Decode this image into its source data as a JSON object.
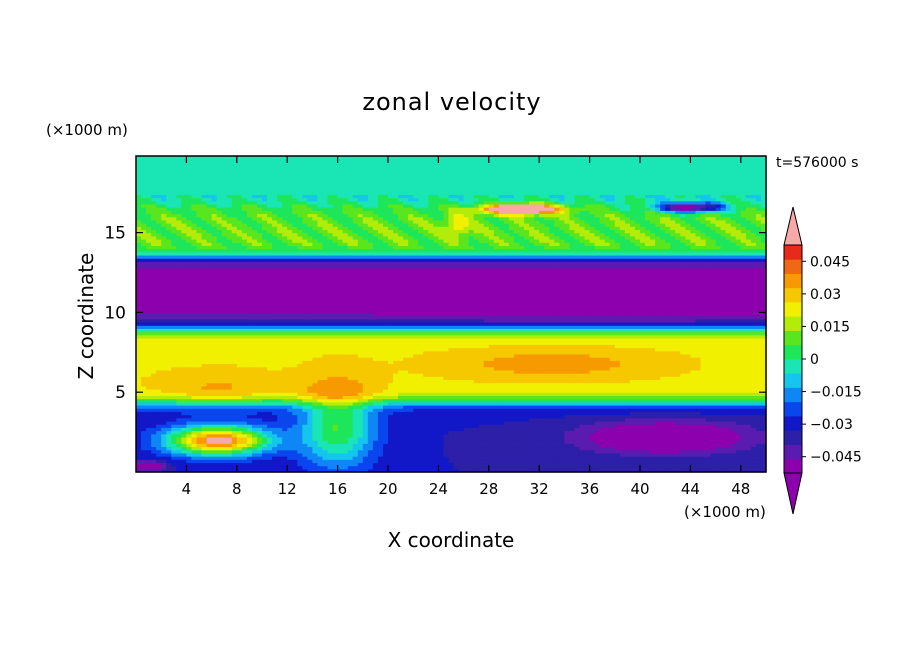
{
  "chart_data": {
    "type": "heatmap",
    "title": "zonal velocity",
    "xlabel": "X coordinate",
    "ylabel": "Z coordinate",
    "x_unit": "(×1000 m)",
    "z_unit": "(×1000 m)",
    "time_label": "t=576000 s",
    "xlim": [
      0,
      50
    ],
    "ylim": [
      0,
      19.8
    ],
    "x_ticks": [
      4,
      8,
      12,
      16,
      20,
      24,
      28,
      32,
      36,
      40,
      44,
      48
    ],
    "y_ticks": [
      5,
      10,
      15
    ],
    "colorbar": {
      "range": [
        -0.0525,
        0.0525
      ],
      "step": 0.0075,
      "extend": "both",
      "tick_values": [
        -0.045,
        -0.03,
        -0.015,
        0,
        0.015,
        0.03,
        0.045
      ],
      "tick_labels": [
        "−0.045",
        "−0.03",
        "−0.015",
        "0",
        "0.015",
        "0.03",
        "0.045"
      ],
      "colors": [
        "#8c00ad",
        "#5a1cb0",
        "#2c1fa8",
        "#1218c8",
        "#0a46ee",
        "#0f86f5",
        "#14c6ee",
        "#19e6b4",
        "#1ee65a",
        "#5ae61e",
        "#b4ec0a",
        "#f0f000",
        "#f6c800",
        "#f69a00",
        "#ef6814",
        "#e82a1a"
      ],
      "over_color": "#f7a8a8",
      "under_color": "#8c00ad"
    },
    "fields": {
      "bands": [
        {
          "z_center": 18.6,
          "z_width": 1.6,
          "value": 0.001
        },
        {
          "z_center": 15.4,
          "z_width": 1.2,
          "value": 0.019
        },
        {
          "z_center": 11.2,
          "z_width": 1.4,
          "value": -0.047
        },
        {
          "z_center": 6.7,
          "z_width": 1.5,
          "value": 0.036
        },
        {
          "z_center": 2.3,
          "z_width": 1.4,
          "value": -0.03
        }
      ],
      "features": [
        {
          "x": 6.5,
          "z": 2.0,
          "sx": 4.0,
          "sz": 0.9,
          "value": 0.09
        },
        {
          "x": 6.5,
          "z": 5.0,
          "sx": 5.0,
          "sz": 1.2,
          "value": 0.012
        },
        {
          "x": 16.0,
          "z": 2.8,
          "sx": 3.0,
          "sz": 2.5,
          "value": 0.045
        },
        {
          "x": 42.0,
          "z": 2.2,
          "sx": 6.5,
          "sz": 1.0,
          "value": -0.035
        },
        {
          "x": 33.0,
          "z": 6.8,
          "sx": 8.0,
          "sz": 0.9,
          "value": 0.014
        },
        {
          "x": 36.0,
          "z": 11.0,
          "sx": 8.0,
          "sz": 0.9,
          "value": -0.015
        },
        {
          "x": 1.0,
          "z": 0.4,
          "sx": 1.2,
          "sz": 0.3,
          "value": -0.04
        },
        {
          "x": 30.5,
          "z": 16.5,
          "sx": 3.0,
          "sz": 0.3,
          "value": 0.08
        },
        {
          "x": 44.0,
          "z": 16.6,
          "sx": 2.5,
          "sz": 0.3,
          "value": -0.07
        },
        {
          "x": 25.5,
          "z": 15.5,
          "sx": 1.0,
          "sz": 0.6,
          "value": 0.02
        }
      ]
    }
  }
}
